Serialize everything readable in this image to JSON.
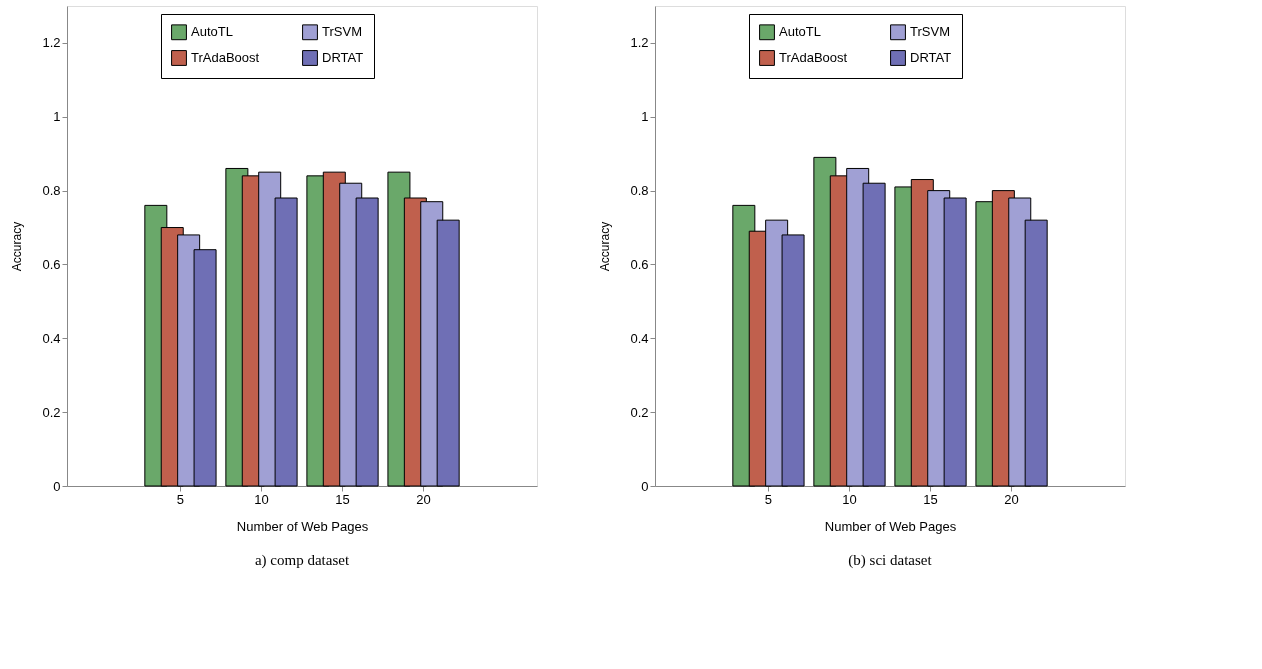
{
  "chart_data": [
    {
      "type": "bar",
      "xlabel": "Number of Web Pages",
      "ylabel": "Accuracy",
      "categories": [
        "5",
        "10",
        "15",
        "20"
      ],
      "ylim": [
        0,
        1.3
      ],
      "yticks": [
        0,
        0.2,
        0.4,
        0.6,
        0.8,
        1,
        1.2
      ],
      "legend": "top",
      "grid": false,
      "annotations": [
        "a) comp dataset"
      ],
      "series": [
        {
          "name": "AutoTL",
          "color": "#6aa86a",
          "values": [
            0.76,
            0.86,
            0.84,
            0.85
          ]
        },
        {
          "name": "TrAdaBoost",
          "color": "#c0604d",
          "values": [
            0.7,
            0.84,
            0.85,
            0.78
          ]
        },
        {
          "name": "TrSVM",
          "color": "#a0a0d4",
          "values": [
            0.68,
            0.85,
            0.82,
            0.77
          ]
        },
        {
          "name": "DRTAT",
          "color": "#6f6fb5",
          "values": [
            0.64,
            0.78,
            0.78,
            0.72
          ]
        }
      ]
    },
    {
      "type": "bar",
      "xlabel": "Number of Web Pages",
      "ylabel": "Accuracy",
      "categories": [
        "5",
        "10",
        "15",
        "20"
      ],
      "ylim": [
        0,
        1.3
      ],
      "yticks": [
        0,
        0.2,
        0.4,
        0.6,
        0.8,
        1,
        1.2
      ],
      "legend": "top",
      "grid": false,
      "annotations": [
        "(b) sci dataset"
      ],
      "series": [
        {
          "name": "AutoTL",
          "color": "#6aa86a",
          "values": [
            0.76,
            0.89,
            0.81,
            0.77
          ]
        },
        {
          "name": "TrAdaBoost",
          "color": "#c0604d",
          "values": [
            0.69,
            0.84,
            0.83,
            0.8
          ]
        },
        {
          "name": "TrSVM",
          "color": "#a0a0d4",
          "values": [
            0.72,
            0.86,
            0.8,
            0.78
          ]
        },
        {
          "name": "DRTAT",
          "color": "#6f6fb5",
          "values": [
            0.68,
            0.82,
            0.78,
            0.72
          ]
        }
      ]
    }
  ]
}
